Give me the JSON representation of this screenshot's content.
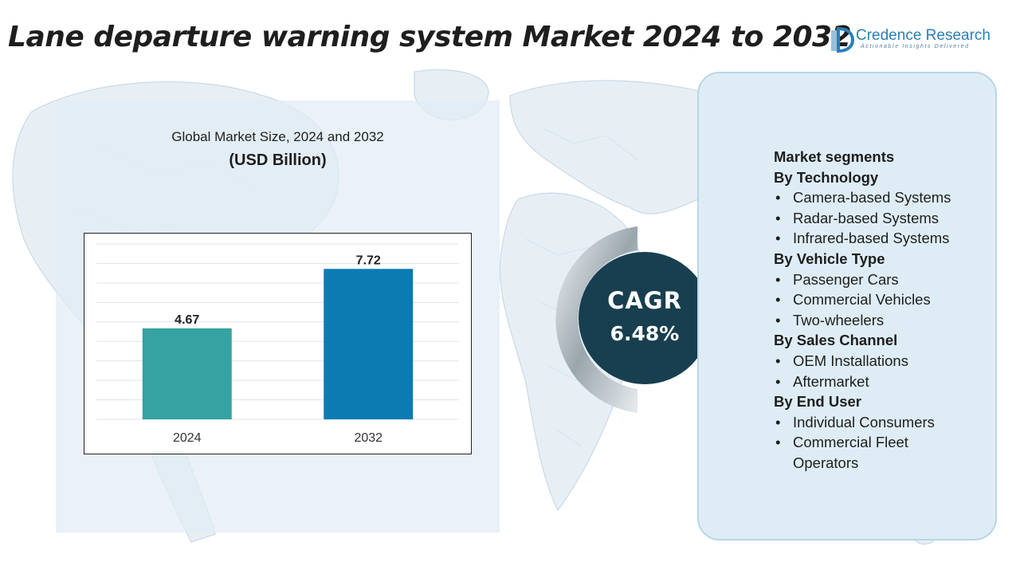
{
  "title": "Lane departure warning system Market 2024 to 2032",
  "logo": {
    "name": "Credence Research",
    "tagline": "Actionable Insights Delivered"
  },
  "chart_data": {
    "type": "bar",
    "title": "Global Market Size, 2024 and 2032",
    "unit": "(USD Billion)",
    "categories": [
      "2024",
      "2032"
    ],
    "values": [
      4.67,
      7.72
    ],
    "value_labels": [
      "4.67",
      "7.72"
    ],
    "colors": [
      "#36a2a2",
      "#0b7bb2"
    ],
    "ylim": [
      0,
      9
    ],
    "grid": true
  },
  "cagr": {
    "label": "CAGR",
    "value": "6.48%"
  },
  "segments": [
    {
      "type": "heading",
      "text": "Market segments"
    },
    {
      "type": "heading",
      "text": "By Technology"
    },
    {
      "type": "item",
      "text": "Camera-based Systems"
    },
    {
      "type": "item",
      "text": "Radar-based Systems"
    },
    {
      "type": "item",
      "text": "Infrared-based Systems"
    },
    {
      "type": "heading",
      "text": "By Vehicle Type"
    },
    {
      "type": "item",
      "text": "Passenger Cars"
    },
    {
      "type": "item",
      "text": "Commercial Vehicles"
    },
    {
      "type": "item",
      "text": "Two-wheelers"
    },
    {
      "type": "heading",
      "text": "By Sales Channel"
    },
    {
      "type": "item",
      "text": "OEM Installations"
    },
    {
      "type": "item",
      "text": "Aftermarket"
    },
    {
      "type": "heading",
      "text": "By End User"
    },
    {
      "type": "item",
      "text": "Individual Consumers"
    },
    {
      "type": "item",
      "text": "Commercial Fleet Operators"
    }
  ]
}
